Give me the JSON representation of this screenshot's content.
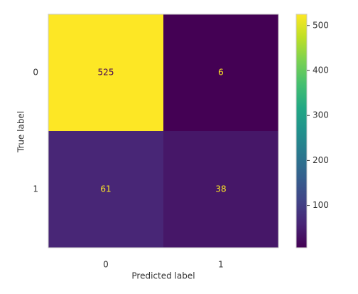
{
  "chart_data": {
    "type": "heatmap",
    "x_label": "Predicted label",
    "y_label": "True label",
    "x_categories": [
      "0",
      "1"
    ],
    "y_categories": [
      "0",
      "1"
    ],
    "values": [
      [
        525,
        6
      ],
      [
        61,
        38
      ]
    ],
    "colormap": "viridis",
    "colorbar_lim": [
      6,
      525
    ],
    "colorbar_ticks": [
      100,
      200,
      300,
      400,
      500
    ]
  }
}
